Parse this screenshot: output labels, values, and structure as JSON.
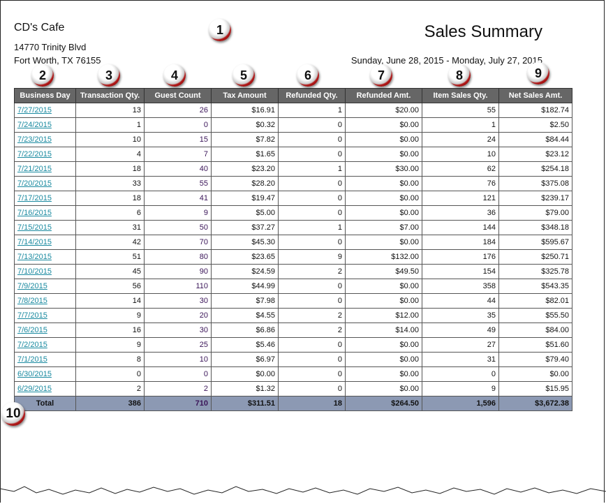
{
  "header": {
    "company": "CD's Cafe",
    "address_line1": "14770 Trinity Blvd",
    "address_line2": "Fort Worth, TX 76155",
    "title": "Sales Summary",
    "date_range": "Sunday, June 28, 2015 - Monday, July 27, 2015"
  },
  "callouts": [
    "1",
    "2",
    "3",
    "4",
    "5",
    "6",
    "7",
    "8",
    "9",
    "10"
  ],
  "columns": [
    "Business Day",
    "Transaction Qty.",
    "Guest Count",
    "Tax Amount",
    "Refunded Qty.",
    "Refunded Amt.",
    "Item Sales Qty.",
    "Net Sales Amt."
  ],
  "rows": [
    [
      "7/27/2015",
      "13",
      "26",
      "$16.91",
      "1",
      "$20.00",
      "55",
      "$182.74"
    ],
    [
      "7/24/2015",
      "1",
      "0",
      "$0.32",
      "0",
      "$0.00",
      "1",
      "$2.50"
    ],
    [
      "7/23/2015",
      "10",
      "15",
      "$7.82",
      "0",
      "$0.00",
      "24",
      "$84.44"
    ],
    [
      "7/22/2015",
      "4",
      "7",
      "$1.65",
      "0",
      "$0.00",
      "10",
      "$23.12"
    ],
    [
      "7/21/2015",
      "18",
      "40",
      "$23.20",
      "1",
      "$30.00",
      "62",
      "$254.18"
    ],
    [
      "7/20/2015",
      "33",
      "55",
      "$28.20",
      "0",
      "$0.00",
      "76",
      "$375.08"
    ],
    [
      "7/17/2015",
      "18",
      "41",
      "$19.47",
      "0",
      "$0.00",
      "121",
      "$239.17"
    ],
    [
      "7/16/2015",
      "6",
      "9",
      "$5.00",
      "0",
      "$0.00",
      "36",
      "$79.00"
    ],
    [
      "7/15/2015",
      "31",
      "50",
      "$37.27",
      "1",
      "$7.00",
      "144",
      "$348.18"
    ],
    [
      "7/14/2015",
      "42",
      "70",
      "$45.30",
      "0",
      "$0.00",
      "184",
      "$595.67"
    ],
    [
      "7/13/2015",
      "51",
      "80",
      "$23.65",
      "9",
      "$132.00",
      "176",
      "$250.71"
    ],
    [
      "7/10/2015",
      "45",
      "90",
      "$24.59",
      "2",
      "$49.50",
      "154",
      "$325.78"
    ],
    [
      "7/9/2015",
      "56",
      "110",
      "$44.99",
      "0",
      "$0.00",
      "358",
      "$543.35"
    ],
    [
      "7/8/2015",
      "14",
      "30",
      "$7.98",
      "0",
      "$0.00",
      "44",
      "$82.01"
    ],
    [
      "7/7/2015",
      "9",
      "20",
      "$4.55",
      "2",
      "$12.00",
      "35",
      "$55.50"
    ],
    [
      "7/6/2015",
      "16",
      "30",
      "$6.86",
      "2",
      "$14.00",
      "49",
      "$84.00"
    ],
    [
      "7/2/2015",
      "9",
      "25",
      "$5.46",
      "0",
      "$0.00",
      "27",
      "$51.60"
    ],
    [
      "7/1/2015",
      "8",
      "10",
      "$6.97",
      "0",
      "$0.00",
      "31",
      "$79.40"
    ],
    [
      "6/30/2015",
      "0",
      "0",
      "$0.00",
      "0",
      "$0.00",
      "0",
      "$0.00"
    ],
    [
      "6/29/2015",
      "2",
      "2",
      "$1.32",
      "0",
      "$0.00",
      "9",
      "$15.95"
    ]
  ],
  "total": [
    "Total",
    "386",
    "710",
    "$311.51",
    "18",
    "$264.50",
    "1,596",
    "$3,672.38"
  ],
  "colors": {
    "header_bg": "#666666",
    "total_bg": "#8c99b3",
    "link": "#1a8aa0",
    "callout_ring": "#b01818"
  }
}
